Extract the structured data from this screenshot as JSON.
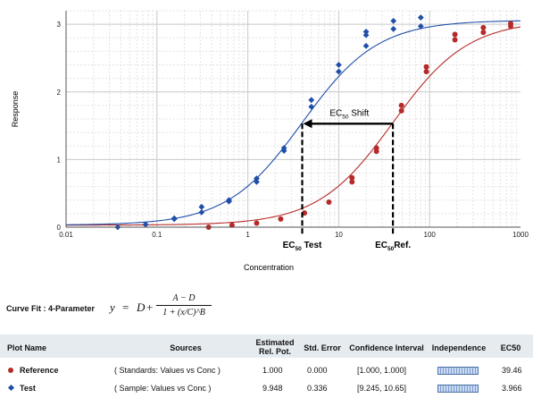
{
  "chart_data": {
    "type": "scatter",
    "xscale": "log",
    "xlim": [
      0.01,
      1000
    ],
    "ylim": [
      0,
      3.2
    ],
    "x_ticks": [
      "0.01",
      "0.1",
      "1",
      "10",
      "100",
      "1000"
    ],
    "y_ticks": [
      "0",
      "1",
      "2",
      "3"
    ],
    "xlabel": "Concentration",
    "ylabel": "Response",
    "grid": true,
    "series": [
      {
        "name": "Reference",
        "color": "#b52a2a",
        "marker": "circle",
        "fit": {
          "A": 0.03,
          "D": 3.06,
          "C": 39.46,
          "B": 1.05
        },
        "points": [
          [
            0.37,
            0.0
          ],
          [
            0.67,
            0.03
          ],
          [
            1.25,
            0.06
          ],
          [
            2.3,
            0.12
          ],
          [
            4.2,
            0.21
          ],
          [
            7.8,
            0.37
          ],
          [
            14.0,
            0.67
          ],
          [
            14.0,
            0.73
          ],
          [
            26.0,
            1.12
          ],
          [
            26.0,
            1.17
          ],
          [
            49.0,
            1.72
          ],
          [
            49.0,
            1.8
          ],
          [
            92.0,
            2.3
          ],
          [
            92.0,
            2.37
          ],
          [
            190.0,
            2.77
          ],
          [
            190.0,
            2.85
          ],
          [
            390.0,
            2.88
          ],
          [
            390.0,
            2.95
          ],
          [
            780.0,
            2.97
          ],
          [
            780.0,
            3.01
          ]
        ]
      },
      {
        "name": "Test",
        "color": "#1f4fa8",
        "marker": "diamond",
        "fit": {
          "A": 0.03,
          "D": 3.06,
          "C": 3.966,
          "B": 1.05
        },
        "points": [
          [
            0.037,
            0.0
          ],
          [
            0.075,
            0.04
          ],
          [
            0.155,
            0.13
          ],
          [
            0.155,
            0.12
          ],
          [
            0.31,
            0.22
          ],
          [
            0.31,
            0.3
          ],
          [
            0.62,
            0.38
          ],
          [
            0.62,
            0.4
          ],
          [
            1.25,
            0.67
          ],
          [
            1.25,
            0.72
          ],
          [
            2.5,
            1.13
          ],
          [
            2.5,
            1.17
          ],
          [
            5.0,
            1.78
          ],
          [
            5.0,
            1.88
          ],
          [
            10.0,
            2.3
          ],
          [
            10.0,
            2.4
          ],
          [
            20.0,
            2.68
          ],
          [
            20.0,
            2.84
          ],
          [
            20.0,
            2.89
          ],
          [
            40.0,
            2.93
          ],
          [
            40.0,
            3.05
          ],
          [
            80.0,
            2.97
          ],
          [
            80.0,
            3.1
          ]
        ]
      }
    ],
    "annotations": {
      "ec_shift": {
        "main": "EC",
        "sub": "50",
        "suffix": " Shift"
      },
      "ec_test": {
        "main": "EC",
        "sub": "50",
        "suffix": " Test",
        "x": 3.966
      },
      "ec_ref": {
        "main": "EC",
        "sub": "50",
        "suffix": "Ref.",
        "x": 39.46
      },
      "shift_y": 1.53
    }
  },
  "curve_fit": {
    "label": "Curve Fit : 4-Parameter",
    "y": "y",
    "eq": "=",
    "d": "D",
    "plus": "+",
    "numerator": "A − D",
    "denominator": "1 + (x/C)^B"
  },
  "table": {
    "headers": {
      "plot_name": "Plot Name",
      "sources": "Sources",
      "est_rel_pot": "Estimated Rel. Pot.",
      "std_error": "Std. Error",
      "ci": "Confidence Interval",
      "independence": "Independence",
      "ec50": "EC50"
    },
    "rows": [
      {
        "name": "Reference",
        "sources": "( Standards: Values vs Conc )",
        "rel_pot": "1.000",
        "std_error": "0.000",
        "ci": "[1.000, 1.000]",
        "ec50": "39.46",
        "marker_color": "#b52a2a"
      },
      {
        "name": "Test",
        "sources": "( Sample: Values vs Conc )",
        "rel_pot": "9.948",
        "std_error": "0.336",
        "ci": "[9.245, 10.65]",
        "ec50": "3.966",
        "marker_color": "#1f4fa8"
      }
    ]
  }
}
